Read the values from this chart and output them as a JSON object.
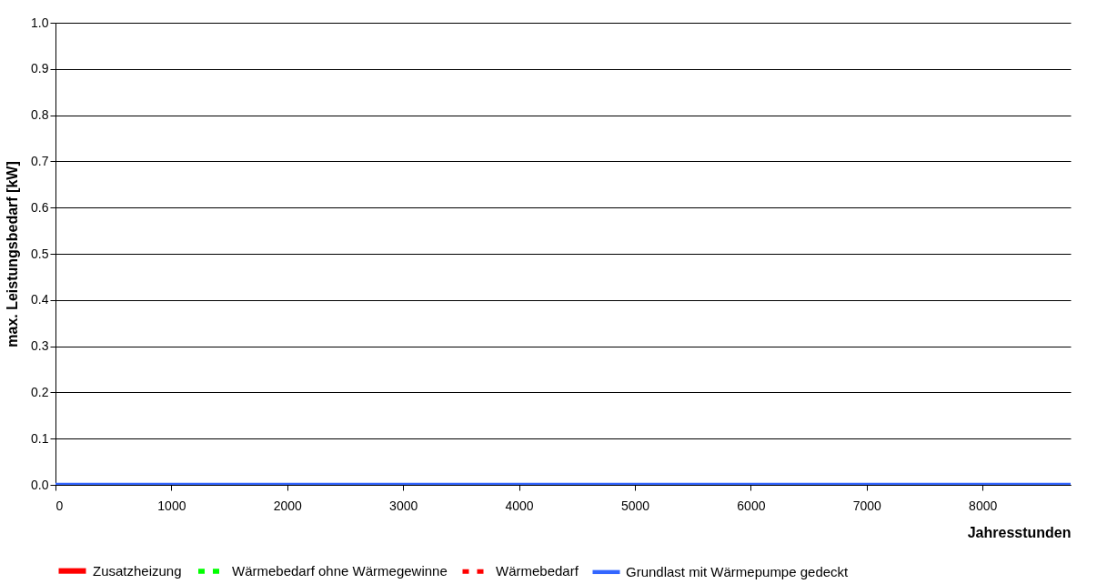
{
  "chart_data": {
    "type": "line",
    "xlabel": "Jahresstunden",
    "ylabel": "max. Leistungsbedarf [kW]",
    "x": [
      0,
      8760
    ],
    "series": [
      {
        "name": "Zusatzheizung",
        "color": "#ff0000",
        "line_style": "solid",
        "values": [
          null,
          null
        ]
      },
      {
        "name": "Wärmebedarf ohne Wärmegewinne",
        "color": "#00ff00",
        "line_style": "dashed",
        "values": [
          null,
          null
        ]
      },
      {
        "name": "Wärmebedarf",
        "color": "#ff0000",
        "line_style": "dashed",
        "values": [
          null,
          null
        ]
      },
      {
        "name": "Grundlast mit Wärmepumpe gedeckt",
        "color": "#3366ff",
        "line_style": "solid",
        "values": [
          0,
          0
        ]
      }
    ],
    "xlim": [
      0,
      8760
    ],
    "xticks": [
      0,
      1000,
      2000,
      3000,
      4000,
      5000,
      6000,
      7000,
      8000
    ],
    "ylim": [
      0,
      1
    ],
    "yticks": [
      {
        "value": 0,
        "label": "0.0"
      },
      {
        "value": 0.1,
        "label": "0.1"
      },
      {
        "value": 0.2,
        "label": "0.2"
      },
      {
        "value": 0.3,
        "label": "0.3"
      },
      {
        "value": 0.4,
        "label": "0.4"
      },
      {
        "value": 0.5,
        "label": "0.5"
      },
      {
        "value": 0.6,
        "label": "0.6"
      },
      {
        "value": 0.7,
        "label": "0.7"
      },
      {
        "value": 0.8,
        "label": "0.8"
      },
      {
        "value": 0.9,
        "label": "0.9"
      },
      {
        "value": 1,
        "label": "1.0"
      }
    ],
    "grid": "y",
    "legend": "bottom"
  }
}
